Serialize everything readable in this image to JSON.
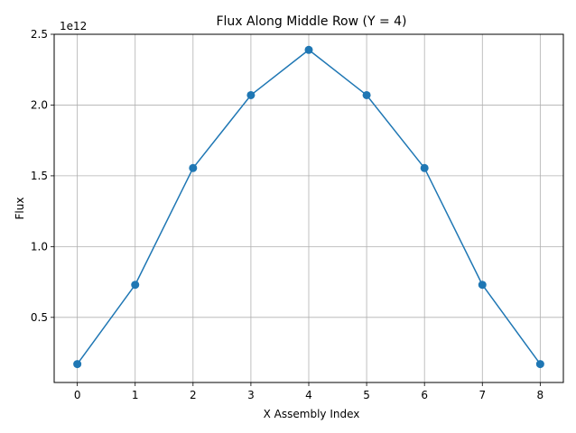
{
  "chart_data": {
    "type": "line",
    "title": "Flux Along Middle Row (Y = 4)",
    "xlabel": "X Assembly Index",
    "ylabel": "Flux",
    "y_offset_label": "1e12",
    "y_scale_factor": 1000000000000.0,
    "x": [
      0,
      1,
      2,
      3,
      4,
      5,
      6,
      7,
      8
    ],
    "series": [
      {
        "values": [
          170000000000.0,
          730000000000.0,
          1555000000000.0,
          2070000000000.0,
          2390000000000.0,
          2070000000000.0,
          1555000000000.0,
          730000000000.0,
          170000000000.0
        ],
        "color": "#1f77b4",
        "marker": "circle"
      }
    ],
    "xlim": [
      -0.4,
      8.4
    ],
    "ylim": [
      40000000000.0,
      2500000000000.0
    ],
    "x_ticks": [
      0,
      1,
      2,
      3,
      4,
      5,
      6,
      7,
      8
    ],
    "x_tick_labels": [
      "0",
      "1",
      "2",
      "3",
      "4",
      "5",
      "6",
      "7",
      "8"
    ],
    "y_ticks": [
      500000000000.0,
      1000000000000.0,
      1500000000000.0,
      2000000000000.0,
      2500000000000.0
    ],
    "y_tick_labels": [
      "0.5",
      "1.0",
      "1.5",
      "2.0",
      "2.5"
    ],
    "grid": true,
    "legend": "none"
  }
}
